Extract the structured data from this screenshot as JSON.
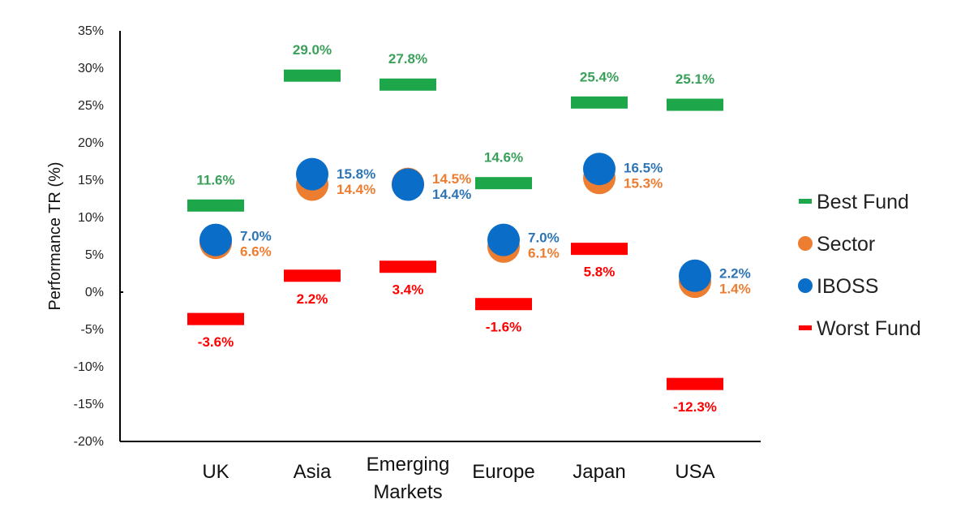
{
  "chart_data": {
    "type": "scatter",
    "ylabel": "Performance TR (%)",
    "ylim": [
      -20,
      35
    ],
    "yticks": [
      -20,
      -15,
      -10,
      -5,
      0,
      5,
      10,
      15,
      20,
      25,
      30,
      35
    ],
    "ytick_labels": [
      "-20%",
      "-15%",
      "-10%",
      "-5%",
      "0%",
      "5%",
      "10%",
      "15%",
      "20%",
      "25%",
      "30%",
      "35%"
    ],
    "categories": [
      {
        "label": "UK",
        "lines": [
          "UK"
        ]
      },
      {
        "label": "Asia",
        "lines": [
          "Asia"
        ]
      },
      {
        "label": "Emerging Markets",
        "lines": [
          "Emerging",
          "Markets"
        ]
      },
      {
        "label": "Europe",
        "lines": [
          "Europe"
        ]
      },
      {
        "label": "Japan",
        "lines": [
          "Japan"
        ]
      },
      {
        "label": "USA",
        "lines": [
          "USA"
        ]
      }
    ],
    "series": [
      {
        "name": "Best Fund",
        "marker": "dash",
        "color": "#1ea64b",
        "label_color": "#3aa05a",
        "values": [
          11.6,
          29.0,
          27.8,
          14.6,
          25.4,
          25.1
        ],
        "labels": [
          "11.6%",
          "29.0%",
          "27.8%",
          "14.6%",
          "25.4%",
          "25.1%"
        ]
      },
      {
        "name": "Sector",
        "marker": "circle",
        "color": "#ed7d31",
        "label_color": "#ed7d31",
        "values": [
          6.6,
          14.4,
          14.5,
          6.1,
          15.3,
          1.4
        ],
        "labels": [
          "6.6%",
          "14.4%",
          "14.5%",
          "6.1%",
          "15.3%",
          "1.4%"
        ]
      },
      {
        "name": "IBOSS",
        "marker": "circle",
        "color": "#0a6ec8",
        "label_color": "#2e75b6",
        "values": [
          7.0,
          15.8,
          14.4,
          7.0,
          16.5,
          2.2
        ],
        "labels": [
          "7.0%",
          "15.8%",
          "14.4%",
          "7.0%",
          "16.5%",
          "2.2%"
        ]
      },
      {
        "name": "Worst Fund",
        "marker": "dash",
        "color": "#ff0000",
        "label_color": "#ff0000",
        "values": [
          -3.6,
          2.2,
          3.4,
          -1.6,
          5.8,
          -12.3
        ],
        "labels": [
          "-3.6%",
          "2.2%",
          "3.4%",
          "-1.6%",
          "5.8%",
          "-12.3%"
        ]
      }
    ],
    "legend": {
      "position": "right",
      "items": [
        "Best Fund",
        "Sector",
        "IBOSS",
        "Worst Fund"
      ]
    }
  }
}
